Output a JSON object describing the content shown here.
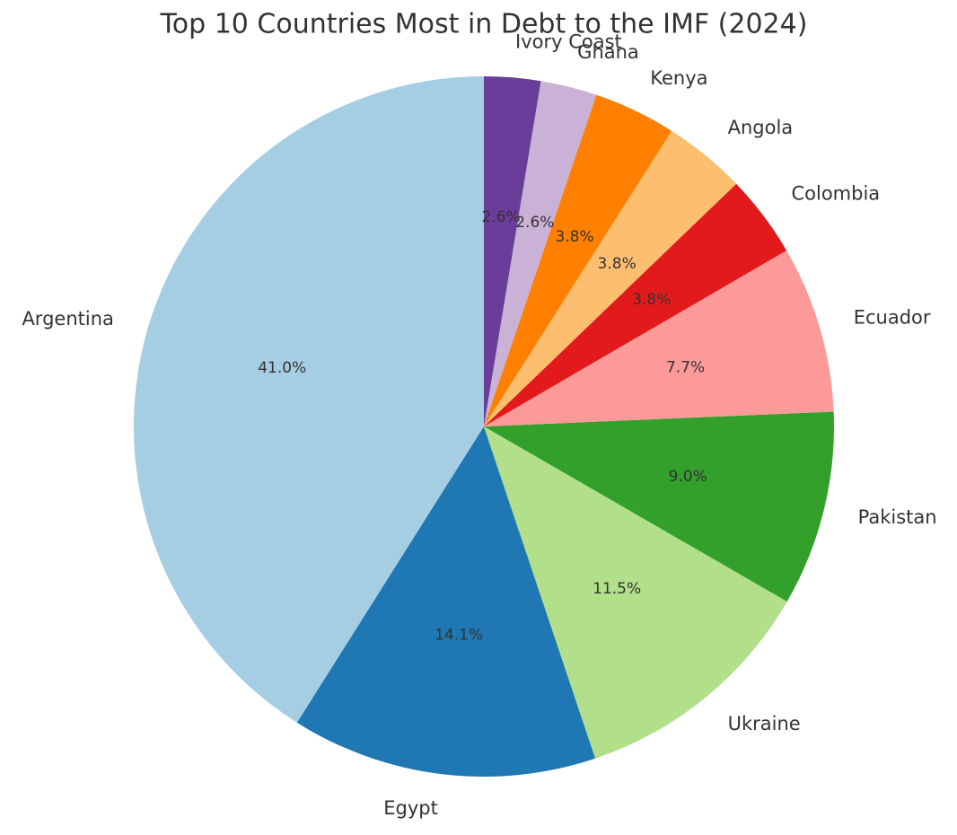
{
  "chart_data": {
    "type": "pie",
    "title": "Top 10 Countries Most in Debt to the IMF (2024)",
    "categories": [
      "Argentina",
      "Egypt",
      "Ukraine",
      "Pakistan",
      "Ecuador",
      "Colombia",
      "Angola",
      "Kenya",
      "Ghana",
      "Ivory Coast"
    ],
    "values": [
      41.0,
      14.1,
      11.5,
      9.0,
      7.7,
      3.8,
      3.8,
      3.8,
      2.6,
      2.6
    ],
    "value_labels": [
      "41.0%",
      "14.1%",
      "11.5%",
      "9.0%",
      "7.7%",
      "3.8%",
      "3.8%",
      "3.8%",
      "2.6%",
      "2.6%"
    ],
    "colors": [
      "#a6cee3",
      "#1f78b4",
      "#b2df8a",
      "#33a02c",
      "#fb9a99",
      "#e31a1c",
      "#fdbf6f",
      "#ff7f00",
      "#cab2d6",
      "#6a3d9a"
    ],
    "start_angle": 90,
    "direction": "counterclockwise"
  }
}
